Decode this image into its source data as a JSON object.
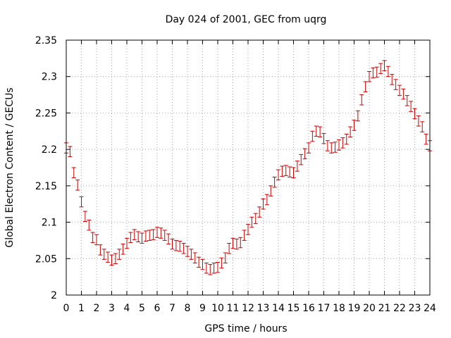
{
  "chart_data": {
    "type": "scatter",
    "title": "Day 024 of 2001, GEC from uqrg",
    "xlabel": "GPS time / hours",
    "ylabel": "Global Electron Content / GECUs",
    "xlim": [
      0,
      24
    ],
    "ylim": [
      2,
      2.35
    ],
    "xticks": [
      0,
      1,
      2,
      3,
      4,
      5,
      6,
      7,
      8,
      9,
      10,
      11,
      12,
      13,
      14,
      15,
      16,
      17,
      18,
      19,
      20,
      21,
      22,
      23,
      24
    ],
    "yticks": [
      2,
      2.05,
      2.1,
      2.15,
      2.2,
      2.25,
      2.3,
      2.35
    ],
    "ytick_labels": [
      "2",
      "2.05",
      "2.1",
      "2.15",
      "2.2",
      "2.25",
      "2.3",
      "2.35"
    ],
    "grid": true,
    "series": [
      {
        "color": "#cc0000",
        "marker": "errorbar",
        "error": 0.007,
        "x": [
          0,
          0.25,
          0.5,
          0.75,
          1,
          1.25,
          1.5,
          1.75,
          2,
          2.25,
          2.5,
          2.75,
          3,
          3.25,
          3.5,
          3.75,
          4,
          4.25,
          4.5,
          4.75,
          5,
          5.25,
          5.5,
          5.75,
          6,
          6.25,
          6.5,
          6.75,
          7,
          7.25,
          7.5,
          7.75,
          8,
          8.25,
          8.5,
          8.75,
          9,
          9.25,
          9.5,
          9.75,
          10,
          10.25,
          10.5,
          10.75,
          11,
          11.25,
          11.5,
          11.75,
          12,
          12.25,
          12.5,
          12.75,
          13,
          13.25,
          13.5,
          13.75,
          14,
          14.25,
          14.5,
          14.75,
          15,
          15.25,
          15.5,
          15.75,
          16,
          16.25,
          16.5,
          16.75,
          17,
          17.25,
          17.5,
          17.75,
          18,
          18.25,
          18.5,
          18.75,
          19,
          19.25,
          19.5,
          19.75,
          20,
          20.25,
          20.5,
          20.75,
          21,
          21.25,
          21.5,
          21.75,
          22,
          22.25,
          22.5,
          22.75,
          23,
          23.25,
          23.5,
          23.75,
          24
        ],
        "y": [
          2.202,
          2.197,
          2.168,
          2.151,
          2.128,
          2.108,
          2.096,
          2.079,
          2.076,
          2.062,
          2.056,
          2.052,
          2.048,
          2.05,
          2.056,
          2.063,
          2.071,
          2.079,
          2.083,
          2.08,
          2.078,
          2.081,
          2.082,
          2.083,
          2.086,
          2.085,
          2.082,
          2.077,
          2.07,
          2.068,
          2.067,
          2.064,
          2.06,
          2.056,
          2.051,
          2.045,
          2.042,
          2.037,
          2.035,
          2.037,
          2.038,
          2.044,
          2.051,
          2.064,
          2.071,
          2.07,
          2.072,
          2.082,
          2.09,
          2.1,
          2.105,
          2.114,
          2.125,
          2.131,
          2.143,
          2.155,
          2.165,
          2.17,
          2.171,
          2.169,
          2.168,
          2.177,
          2.186,
          2.194,
          2.202,
          2.218,
          2.225,
          2.224,
          2.215,
          2.205,
          2.202,
          2.203,
          2.206,
          2.209,
          2.214,
          2.224,
          2.233,
          2.246,
          2.268,
          2.286,
          2.3,
          2.305,
          2.306,
          2.311,
          2.315,
          2.307,
          2.296,
          2.289,
          2.281,
          2.276,
          2.267,
          2.259,
          2.249,
          2.239,
          2.231,
          2.214,
          2.205
        ]
      }
    ]
  }
}
